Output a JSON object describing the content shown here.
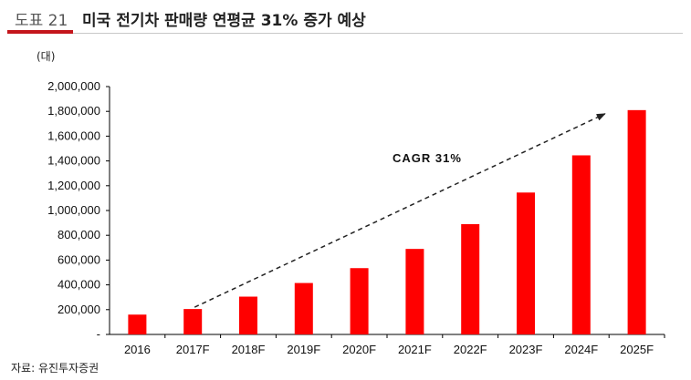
{
  "header": {
    "figure_label": "도표 21",
    "title": "미국 전기차 판매량 연평균 31% 증가 예상"
  },
  "colors": {
    "accent": "#c4161c",
    "bar": "#ff0000",
    "arrow": "#222222"
  },
  "chart_data": {
    "type": "bar",
    "unit": "(대)",
    "categories": [
      "2016",
      "2017F",
      "2018F",
      "2019F",
      "2020F",
      "2021F",
      "2022F",
      "2023F",
      "2024F",
      "2025F"
    ],
    "values": [
      160000,
      205000,
      305000,
      415000,
      535000,
      690000,
      890000,
      1145000,
      1445000,
      1810000
    ],
    "ylim": [
      0,
      2000000
    ],
    "yticks": [
      "-",
      "200,000",
      "400,000",
      "600,000",
      "800,000",
      "1,000,000",
      "1,200,000",
      "1,400,000",
      "1,600,000",
      "1,800,000",
      "2,000,000"
    ],
    "annotation": "CAGR 31%",
    "grid": false
  },
  "source": "자료: 유진투자증권"
}
